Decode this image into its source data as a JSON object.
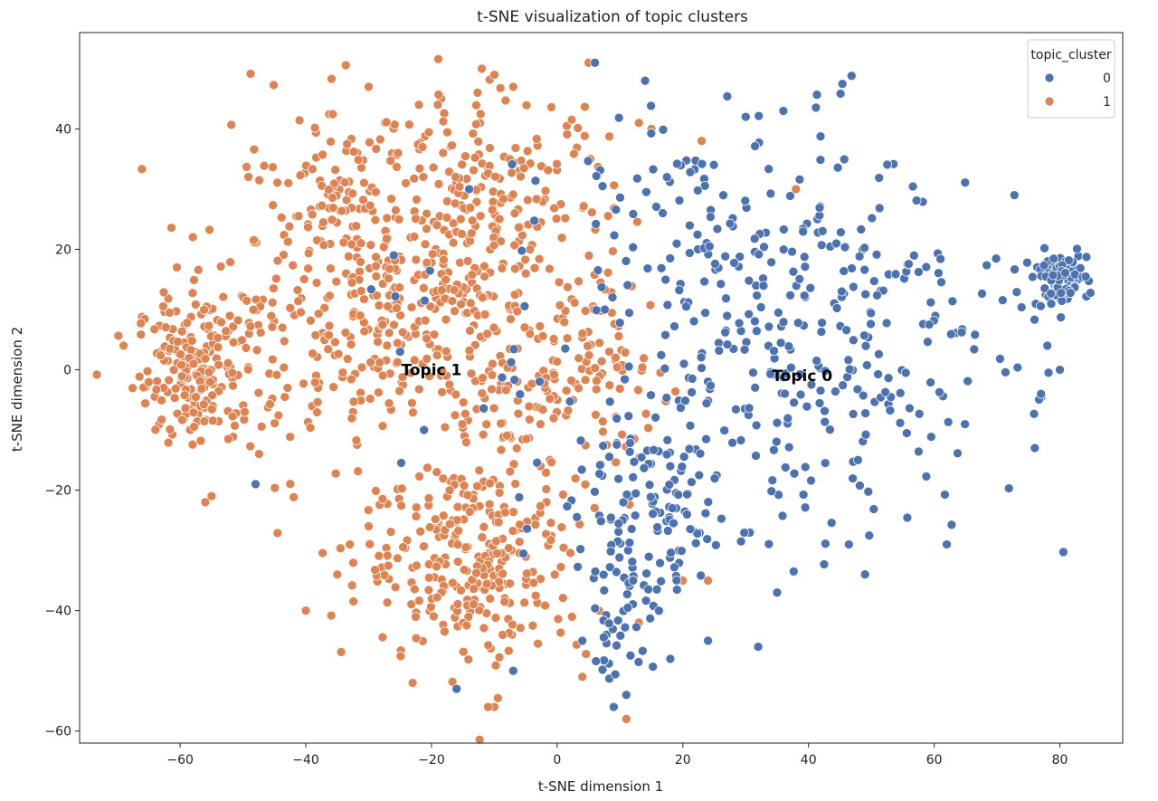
{
  "chart_data": {
    "type": "scatter",
    "title": "t-SNE visualization of topic clusters",
    "xlabel": "t-SNE dimension 1",
    "ylabel": "t-SNE dimension 2",
    "xlim": [
      -76,
      90
    ],
    "ylim": [
      -62,
      56
    ],
    "xticks": [
      -60,
      -40,
      -20,
      0,
      20,
      40,
      60,
      80
    ],
    "yticks": [
      -60,
      -40,
      -20,
      0,
      20,
      40
    ],
    "grid": false,
    "legend": {
      "title": "topic_cluster",
      "placement": "top-right",
      "entries": [
        "0",
        "1"
      ]
    },
    "annotations": [
      {
        "text": "Topic 1",
        "x": -20,
        "y": 0
      },
      {
        "text": "Topic 0",
        "x": 39,
        "y": -1
      }
    ],
    "series": [
      {
        "name": "0",
        "color": "#4c72b0",
        "regions": [
          {
            "cx": 40,
            "cy": 5,
            "sx": 17,
            "sy": 17,
            "n": 360
          },
          {
            "cx": 15,
            "cy": -25,
            "sx": 6,
            "sy": 8,
            "n": 110
          },
          {
            "cx": 10,
            "cy": -40,
            "sx": 3,
            "sy": 6,
            "n": 40
          },
          {
            "cx": 80,
            "cy": 15,
            "sx": 2.2,
            "sy": 2.2,
            "n": 90
          },
          {
            "cx": 20,
            "cy": 30,
            "sx": 10,
            "sy": 8,
            "n": 40
          },
          {
            "cx": -10,
            "cy": 0,
            "sx": 12,
            "sy": 15,
            "n": 25
          }
        ],
        "points": [
          [
            6,
            51
          ],
          [
            14,
            48
          ],
          [
            36,
            43
          ],
          [
            30,
            42
          ],
          [
            78,
            4
          ],
          [
            77,
            -4
          ],
          [
            76,
            -13
          ],
          [
            80,
            0
          ],
          [
            62,
            -29
          ],
          [
            49,
            -34
          ],
          [
            32,
            -46
          ],
          [
            35,
            -37
          ],
          [
            24,
            -45
          ],
          [
            18,
            -48
          ],
          [
            9,
            -56
          ],
          [
            11,
            -54
          ],
          [
            -48,
            -19
          ],
          [
            -16,
            -53
          ],
          [
            -7,
            -50
          ],
          [
            4,
            -45
          ],
          [
            -14,
            30
          ],
          [
            -26,
            19
          ],
          [
            -25,
            3
          ]
        ]
      },
      {
        "name": "1",
        "color": "#dd8452",
        "regions": [
          {
            "cx": -57,
            "cy": 0,
            "sx": 5,
            "sy": 6,
            "n": 200
          },
          {
            "cx": -28,
            "cy": 12,
            "sx": 14,
            "sy": 13,
            "n": 450
          },
          {
            "cx": -10,
            "cy": 28,
            "sx": 9,
            "sy": 9,
            "n": 150
          },
          {
            "cx": -13,
            "cy": -31,
            "sx": 9,
            "sy": 9,
            "n": 280
          },
          {
            "cx": -3,
            "cy": -3,
            "sx": 8,
            "sy": 8,
            "n": 120
          },
          {
            "cx": -34,
            "cy": 30,
            "sx": 5,
            "sy": 6,
            "n": 50
          },
          {
            "cx": 10,
            "cy": 0,
            "sx": 4,
            "sy": 7,
            "n": 30
          }
        ],
        "points": [
          [
            -69,
            4
          ],
          [
            -56,
            -22
          ],
          [
            -55,
            -21
          ],
          [
            -12,
            50
          ],
          [
            -10,
            49
          ],
          [
            5,
            51
          ],
          [
            -30,
            47
          ],
          [
            -7,
            47
          ],
          [
            -22,
            44
          ],
          [
            -19,
            44
          ],
          [
            -35,
            -34
          ],
          [
            -33,
            -29
          ],
          [
            -30,
            -26
          ],
          [
            -40,
            -40
          ],
          [
            -10,
            -56
          ],
          [
            -11,
            -56
          ],
          [
            -23,
            -52
          ],
          [
            38,
            30
          ],
          [
            23,
            38
          ],
          [
            13,
            41
          ],
          [
            15,
            40
          ],
          [
            13,
            -42
          ],
          [
            4,
            -51
          ],
          [
            11,
            -58
          ],
          [
            20,
            -35
          ],
          [
            24,
            -35
          ]
        ]
      }
    ]
  }
}
